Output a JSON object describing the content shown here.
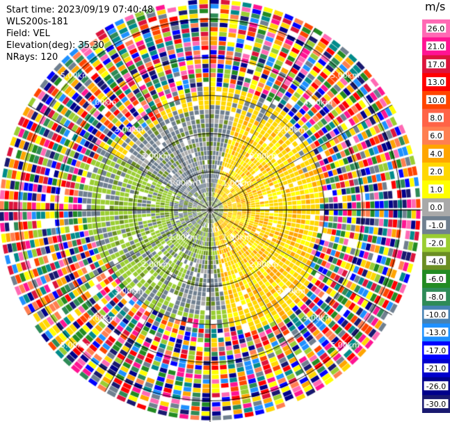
{
  "header": {
    "start_time": "Start time: 2023/09/19 07:40:48",
    "instrument": "WLS200s-181",
    "field": "Field: VEL",
    "elevation": "Elevation(deg): 35.30",
    "nrays": "NRays: 120"
  },
  "colorbar": {
    "unit": "m/s",
    "ticks": [
      "26.0",
      "21.0",
      "17.0",
      "13.0",
      "10.0",
      "8.0",
      "6.0",
      "4.0",
      "2.0",
      "1.0",
      "0.0",
      "-1.0",
      "-2.0",
      "-4.0",
      "-6.0",
      "-8.0",
      "-10.0",
      "-13.0",
      "-17.0",
      "-21.0",
      "-26.0",
      "-30.0"
    ],
    "colors": [
      "#ff69b4",
      "#ff1493",
      "#dc143c",
      "#ff0000",
      "#ff4500",
      "#ff6347",
      "#ff7f50",
      "#ffa500",
      "#ffd700",
      "#ffff00",
      "#a9a9a9",
      "#708090",
      "#9acd32",
      "#6b8e23",
      "#228b22",
      "#2e8b57",
      "#4682b4",
      "#1e90ff",
      "#0000ff",
      "#0000cd",
      "#00008b",
      "#191970"
    ]
  },
  "chart_data": {
    "type": "heatmap",
    "subtype": "ppi-polar",
    "field": "VEL",
    "units": "m/s",
    "elevation_deg": 35.3,
    "nrays": 120,
    "range_rings": [
      "1.00km",
      "2.00km",
      "3.00km",
      "4.00km",
      "5.00km"
    ],
    "spokes_deg": [
      0,
      30,
      60,
      90,
      120,
      150,
      180,
      210,
      240,
      270,
      300,
      330
    ],
    "clim": [
      -30,
      26
    ],
    "sectors": [
      {
        "azimuth_from": 300,
        "azimuth_to": 60,
        "range_km": [
          0.2,
          2.8
        ],
        "dominant_velocity": -1.0,
        "description": "grey band"
      },
      {
        "azimuth_from": 20,
        "azimuth_to": 160,
        "range_km": [
          0.3,
          3.0
        ],
        "dominant_velocity": 2.0,
        "description": "yellow receding"
      },
      {
        "azimuth_from": 160,
        "azimuth_to": 320,
        "range_km": [
          0.5,
          3.0
        ],
        "dominant_velocity": -2.0,
        "description": "green approaching"
      },
      {
        "azimuth_from": 0,
        "azimuth_to": 360,
        "range_km": [
          3.2,
          5.5
        ],
        "dominant_velocity": null,
        "description": "noise"
      }
    ]
  }
}
